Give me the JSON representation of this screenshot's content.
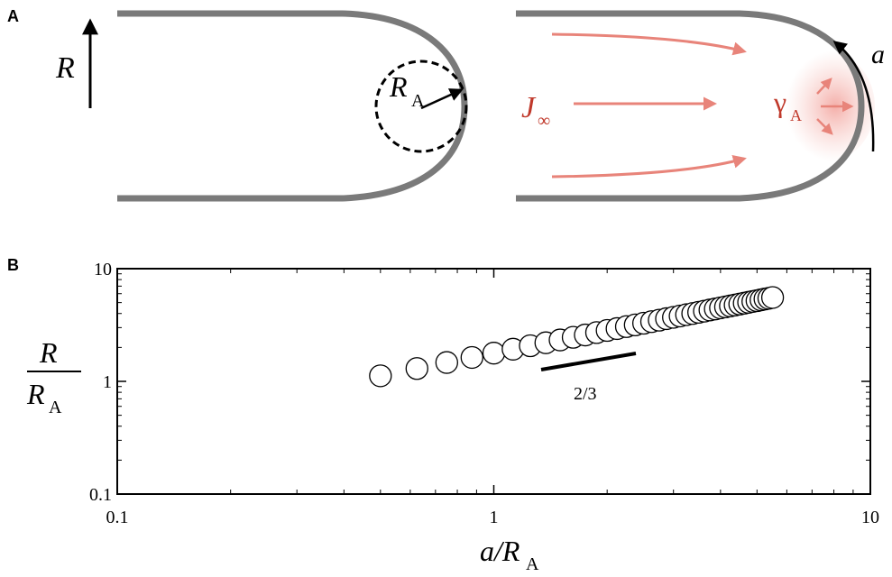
{
  "panels": {
    "a": "A",
    "b": "B"
  },
  "diagram": {
    "height_label": "R",
    "radius_label": "R",
    "radius_sub": "A",
    "flux_label": "J",
    "flux_sub": "∞",
    "tension_label": "γ",
    "tension_sub": "A",
    "arc_label": "a"
  },
  "chart_data": {
    "type": "scatter",
    "log_scale": true,
    "xlabel": "a/R",
    "xlabel_sub": "A",
    "ylabel_num": "R",
    "ylabel_den": "R",
    "ylabel_den_sub": "A",
    "annotation": "2/3",
    "x": [
      0.5,
      0.625,
      0.75,
      0.875,
      1,
      1.125,
      1.25,
      1.375,
      1.5,
      1.625,
      1.75,
      1.875,
      2,
      2.125,
      2.25,
      2.375,
      2.5,
      2.625,
      2.75,
      2.875,
      3,
      3.125,
      3.25,
      3.375,
      3.5,
      3.625,
      3.75,
      3.875,
      4,
      4.125,
      4.25,
      4.375,
      4.5,
      4.625,
      4.75,
      4.875,
      5,
      5.125,
      5.25,
      5.375,
      5.5
    ],
    "values": [
      1.12,
      1.3,
      1.47,
      1.63,
      1.78,
      1.93,
      2.07,
      2.2,
      2.33,
      2.46,
      2.58,
      2.71,
      2.83,
      2.94,
      3.06,
      3.17,
      3.28,
      3.39,
      3.49,
      3.6,
      3.7,
      3.8,
      3.91,
      4.0,
      4.1,
      4.2,
      4.3,
      4.39,
      4.49,
      4.58,
      4.67,
      4.76,
      4.85,
      4.94,
      5.03,
      5.12,
      5.2,
      5.29,
      5.38,
      5.46,
      5.55
    ],
    "xlim": [
      0.1,
      10
    ],
    "ylim": [
      0.1,
      10
    ],
    "xticks": [
      0.1,
      1,
      10
    ],
    "yticks": [
      0.1,
      1,
      10
    ],
    "minor_ticks": [
      0.2,
      0.3,
      0.4,
      0.5,
      0.6,
      0.7,
      0.8,
      0.9,
      2,
      3,
      4,
      5,
      6,
      7,
      8,
      9
    ]
  }
}
